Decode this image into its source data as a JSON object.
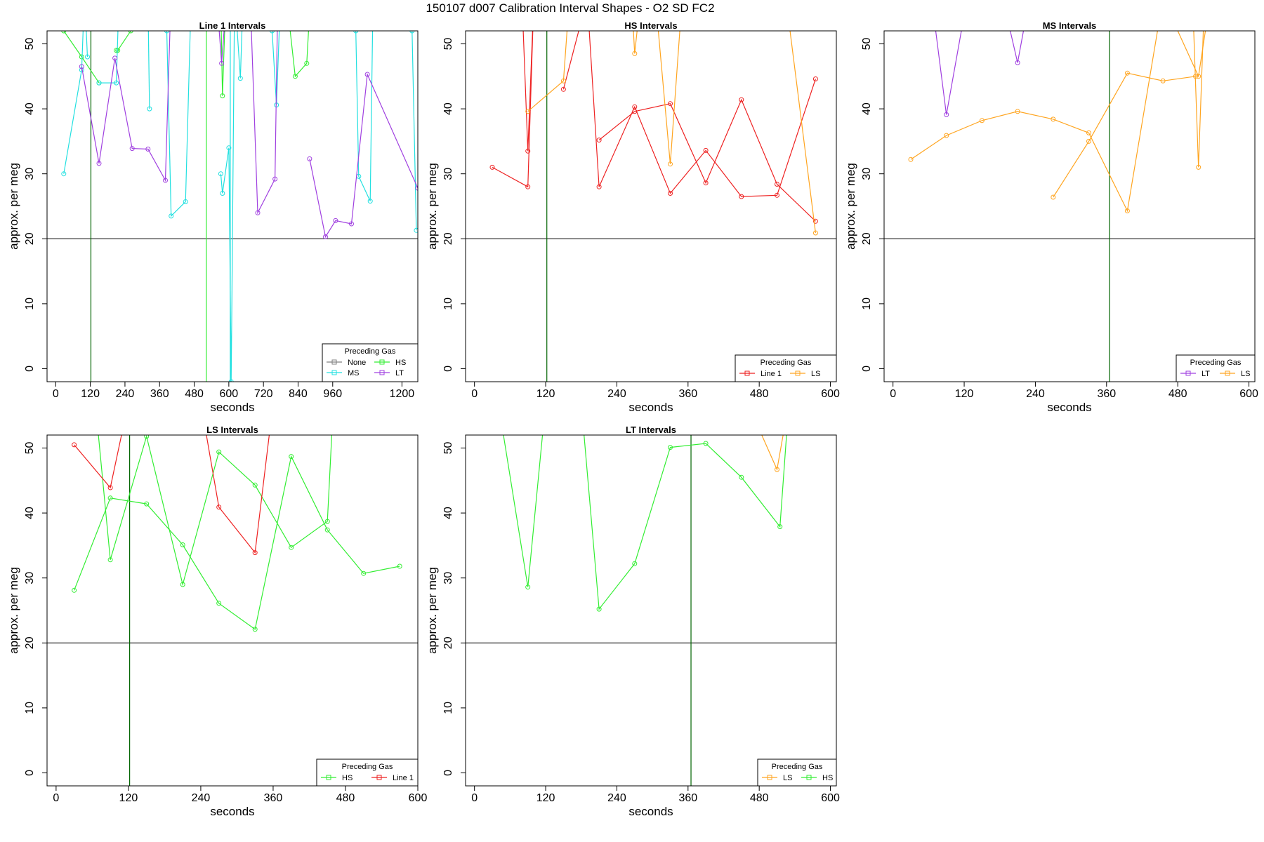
{
  "figure": {
    "title": "150107   d007   Calibration Interval Shapes - O2 SD FC2",
    "colors": {
      "None": "#808080",
      "HS": "#33ee33",
      "MS": "#22e0e0",
      "LT": "#a040e0",
      "Line 1": "#ee2222",
      "LS": "#ffa520",
      "ref_hline": "#000000",
      "ref_vline": "#006400"
    }
  },
  "chart_data": [
    {
      "type": "line",
      "title": "Line 1 Intervals",
      "xlabel": "seconds",
      "ylabel": "approx. per meg",
      "xlim": [
        -30,
        1255
      ],
      "ylim": [
        -2,
        52
      ],
      "xticks": [
        0,
        120,
        240,
        360,
        480,
        600,
        720,
        840,
        960,
        1200
      ],
      "yticks": [
        0,
        10,
        20,
        30,
        40,
        50
      ],
      "hline": 20,
      "vlines": [
        {
          "x": 122,
          "color": "#006400"
        }
      ],
      "legend": {
        "title": "Preceding Gas",
        "placement": "bottom-right",
        "columns": 2,
        "entries": [
          "None",
          "HS",
          "MS",
          "LT"
        ]
      },
      "series": [
        {
          "name": "HS",
          "color": "#33ee33",
          "segments": [
            {
              "x": [
                28,
                90,
                150
              ],
              "y": [
                52,
                48,
                44
              ]
            },
            {
              "x": [
                210,
                215,
                260,
                290
              ],
              "y": [
                49,
                49,
                52,
                55
              ]
            },
            {
              "x": [
                572,
                578,
                590
              ],
              "y": [
                56,
                42,
                58
              ]
            },
            {
              "x": [
                810,
                830,
                870,
                880
              ],
              "y": [
                53,
                45,
                47,
                55
              ]
            }
          ]
        },
        {
          "name": "MS",
          "color": "#22e0e0",
          "segments": [
            {
              "x": [
                28,
                90,
                100,
                110
              ],
              "y": [
                30,
                46,
                58,
                48
              ]
            },
            {
              "x": [
                150,
                210,
                220
              ],
              "y": [
                44,
                44,
                58
              ]
            },
            {
              "x": [
                320,
                325
              ],
              "y": [
                56,
                40
              ]
            },
            {
              "x": [
                385,
                400,
                450,
                470,
                490
              ],
              "y": [
                52,
                23.5,
                25.7,
                58,
                58
              ]
            },
            {
              "x": [
                572,
                578,
                600,
                608,
                620,
                640,
                650
              ],
              "y": [
                30,
                27,
                34,
                -2,
                58,
                44.7,
                58
              ]
            },
            {
              "x": [
                750,
                765,
                780
              ],
              "y": [
                52,
                40.6,
                58
              ]
            },
            {
              "x": [
                1040,
                1050,
                1090,
                1100
              ],
              "y": [
                52,
                29.6,
                25.8,
                58
              ]
            },
            {
              "x": [
                1235,
                1250
              ],
              "y": [
                52,
                21.3
              ]
            }
          ]
        },
        {
          "name": "LT",
          "color": "#a040e0",
          "segments": [
            {
              "x": [
                90,
                150,
                205,
                265,
                320,
                380,
                400
              ],
              "y": [
                46.5,
                31.6,
                47.8,
                33.9,
                33.8,
                29,
                58
              ]
            },
            {
              "x": [
                560,
                575,
                590
              ],
              "y": [
                56,
                47,
                56
              ]
            },
            {
              "x": [
                675,
                700,
                760,
                770
              ],
              "y": [
                56,
                24,
                29.2,
                58
              ]
            },
            {
              "x": [
                880,
                935,
                970,
                1025,
                1080,
                1255
              ],
              "y": [
                32.3,
                20.3,
                22.8,
                22.3,
                45.3,
                27.8
              ]
            }
          ]
        },
        {
          "name": "None",
          "color": "#808080",
          "segments": []
        }
      ],
      "extra_vlines": [
        {
          "x": 522,
          "color": "#33ee33"
        },
        {
          "x": 605,
          "color": "#22e0e0"
        }
      ]
    },
    {
      "type": "line",
      "title": "HS Intervals",
      "xlabel": "seconds",
      "ylabel": "approx. per meg",
      "xlim": [
        -15,
        610
      ],
      "ylim": [
        -2,
        52
      ],
      "xticks": [
        0,
        120,
        240,
        360,
        480,
        600
      ],
      "yticks": [
        0,
        10,
        20,
        30,
        40,
        50
      ],
      "hline": 20,
      "vlines": [
        {
          "x": 122,
          "color": "#006400"
        }
      ],
      "legend": {
        "title": "Preceding Gas",
        "placement": "bottom-right",
        "columns": 2,
        "entries": [
          "Line 1",
          "LS"
        ]
      },
      "series": [
        {
          "name": "Line 1",
          "color": "#ee2222",
          "segments": [
            {
              "x": [
                30,
                90,
                100,
                110
              ],
              "y": [
                31,
                28,
                57,
                57
              ]
            },
            {
              "x": [
                80,
                90,
                100
              ],
              "y": [
                57,
                33.5,
                57
              ]
            },
            {
              "x": [
                150,
                190,
                210,
                270,
                330,
                390,
                450,
                510,
                575
              ],
              "y": [
                43,
                57,
                28,
                40.3,
                27,
                33.6,
                26.5,
                26.7,
                44.6
              ]
            },
            {
              "x": [
                210,
                270,
                330,
                390,
                450,
                510,
                575
              ],
              "y": [
                35.2,
                39.6,
                40.8,
                28.6,
                41.4,
                28.4,
                22.7
              ]
            }
          ]
        },
        {
          "name": "LS",
          "color": "#ffa520",
          "segments": [
            {
              "x": [
                90,
                150,
                160
              ],
              "y": [
                39.6,
                44.3,
                57
              ]
            },
            {
              "x": [
                265,
                270,
                280
              ],
              "y": [
                57,
                48.5,
                57
              ]
            },
            {
              "x": [
                305,
                330,
                350
              ],
              "y": [
                57,
                31.5,
                57
              ]
            },
            {
              "x": [
                525,
                575
              ],
              "y": [
                57,
                20.9
              ]
            }
          ]
        }
      ],
      "extra_vlines": []
    },
    {
      "type": "line",
      "title": "MS Intervals",
      "xlabel": "seconds",
      "ylabel": "approx. per meg",
      "xlim": [
        -15,
        610
      ],
      "ylim": [
        -2,
        52
      ],
      "xticks": [
        0,
        120,
        240,
        360,
        480,
        600
      ],
      "yticks": [
        0,
        10,
        20,
        30,
        40,
        50
      ],
      "hline": 20,
      "vlines": [
        {
          "x": 365,
          "color": "#006400"
        }
      ],
      "legend": {
        "title": "Preceding Gas",
        "placement": "bottom-right",
        "columns": 2,
        "entries": [
          "LT",
          "LS"
        ]
      },
      "series": [
        {
          "name": "LT",
          "color": "#a040e0",
          "segments": [
            {
              "x": [
                65,
                90,
                125
              ],
              "y": [
                57,
                39.1,
                57
              ]
            },
            {
              "x": [
                185,
                210,
                230
              ],
              "y": [
                57,
                47.1,
                57
              ]
            }
          ]
        },
        {
          "name": "LS",
          "color": "#ffa520",
          "segments": [
            {
              "x": [
                30,
                90,
                150,
                210,
                270,
                330,
                395,
                455,
                515,
                535
              ],
              "y": [
                32.2,
                35.9,
                38.2,
                39.6,
                38.4,
                36.3,
                24.3,
                57,
                45,
                57
              ]
            },
            {
              "x": [
                270,
                330,
                395,
                455,
                510
              ],
              "y": [
                26.4,
                35,
                45.5,
                44.3,
                45
              ]
            },
            {
              "x": [
                505,
                515,
                525
              ],
              "y": [
                57,
                31,
                57
              ]
            }
          ]
        }
      ],
      "extra_vlines": []
    },
    {
      "type": "line",
      "title": "LS Intervals",
      "xlabel": "seconds",
      "ylabel": "approx. per meg",
      "xlim": [
        -15,
        600
      ],
      "ylim": [
        -2,
        52
      ],
      "xticks": [
        0,
        120,
        240,
        360,
        480,
        600
      ],
      "yticks": [
        0,
        10,
        20,
        30,
        40,
        50
      ],
      "hline": 20,
      "vlines": [
        {
          "x": 122,
          "color": "#006400"
        }
      ],
      "legend": {
        "title": "Preceding Gas",
        "placement": "bottom-right",
        "columns": 2,
        "entries": [
          "HS",
          "Line 1"
        ]
      },
      "series": [
        {
          "name": "HS",
          "color": "#33ee33",
          "segments": [
            {
              "x": [
                30,
                90,
                150,
                210,
                270,
                330,
                390,
                450,
                510,
                570
              ],
              "y": [
                28.1,
                42.3,
                41.4,
                35.1,
                26.1,
                22.1,
                48.7,
                37.4,
                30.7,
                31.8
              ]
            },
            {
              "x": [
                65,
                90,
                150,
                210,
                270,
                330,
                390,
                450,
                460
              ],
              "y": [
                57,
                32.8,
                51.8,
                29,
                49.4,
                44.3,
                34.7,
                38.7,
                57
              ]
            }
          ]
        },
        {
          "name": "Line 1",
          "color": "#ee2222",
          "segments": [
            {
              "x": [
                30,
                90,
                120
              ],
              "y": [
                50.5,
                43.9,
                57
              ]
            },
            {
              "x": [
                240,
                270,
                330,
                360
              ],
              "y": [
                57,
                40.9,
                33.9,
                57
              ]
            }
          ]
        }
      ],
      "extra_vlines": []
    },
    {
      "type": "line",
      "title": "LT Intervals",
      "xlabel": "seconds",
      "ylabel": "approx. per meg",
      "xlim": [
        -15,
        610
      ],
      "ylim": [
        -2,
        52
      ],
      "xticks": [
        0,
        120,
        240,
        360,
        480,
        600
      ],
      "yticks": [
        0,
        10,
        20,
        30,
        40,
        50
      ],
      "hline": 20,
      "vlines": [
        {
          "x": 365,
          "color": "#006400"
        }
      ],
      "legend": {
        "title": "Preceding Gas",
        "placement": "bottom-right",
        "columns": 2,
        "entries": [
          "LS",
          "HS"
        ]
      },
      "series": [
        {
          "name": "LS",
          "color": "#ffa520",
          "segments": [
            {
              "x": [
                460,
                510,
                530
              ],
              "y": [
                57,
                46.7,
                57
              ]
            }
          ]
        },
        {
          "name": "HS",
          "color": "#33ee33",
          "segments": [
            {
              "x": [
                40,
                90,
                120
              ],
              "y": [
                57,
                28.6,
                57
              ]
            },
            {
              "x": [
                180,
                210,
                270,
                330,
                390,
                450,
                515,
                530
              ],
              "y": [
                57,
                25.2,
                32.2,
                50.1,
                50.7,
                45.5,
                37.9,
                57
              ]
            }
          ]
        }
      ],
      "extra_vlines": []
    }
  ]
}
